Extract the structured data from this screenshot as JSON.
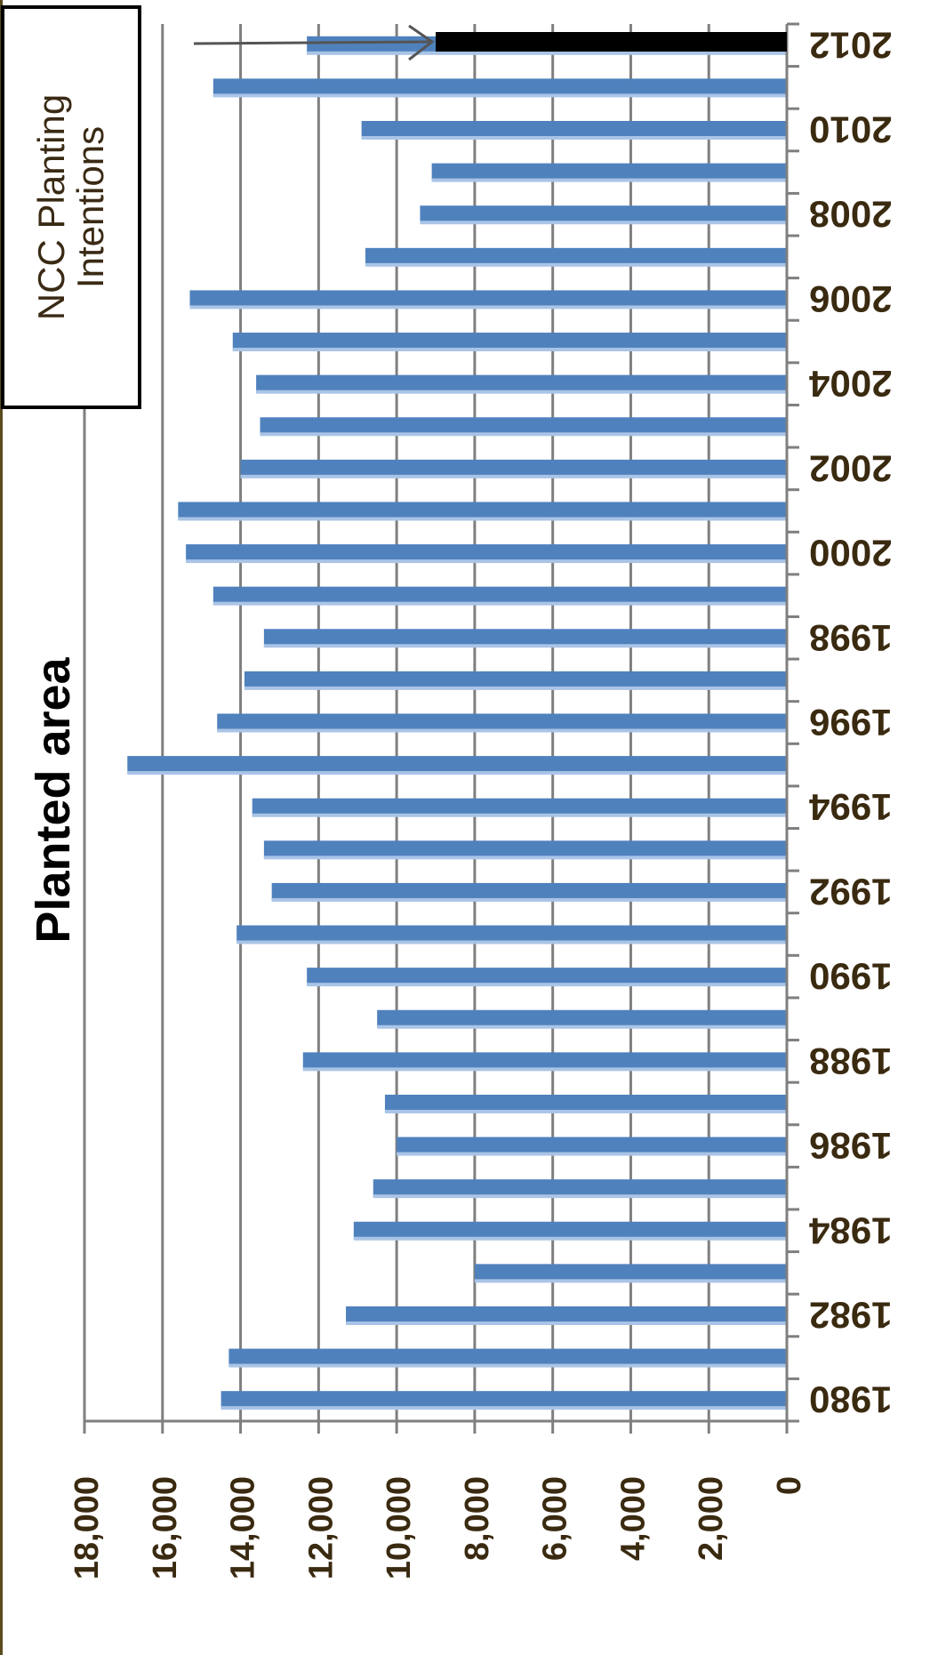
{
  "chart_data": {
    "type": "bar",
    "orientation": "horizontal-bars, figure rotated 90 degrees clockwise",
    "title": "Planted area",
    "categories": [
      "1980",
      "1981",
      "1982",
      "1983",
      "1984",
      "1985",
      "1986",
      "1987",
      "1988",
      "1989",
      "1990",
      "1991",
      "1992",
      "1993",
      "1994",
      "1995",
      "1996",
      "1997",
      "1998",
      "1999",
      "2000",
      "2001",
      "2002",
      "2003",
      "2004",
      "2005",
      "2006",
      "2007",
      "2008",
      "2009",
      "2010",
      "2011",
      "2012"
    ],
    "category_tick_labels": [
      "1980",
      "1982",
      "1984",
      "1986",
      "1988",
      "1990",
      "1992",
      "1994",
      "1996",
      "1998",
      "2000",
      "2002",
      "2004",
      "2006",
      "2008",
      "2010",
      "2012"
    ],
    "series": [
      {
        "values": [
          14500,
          14300,
          11300,
          8000,
          11100,
          10600,
          10000,
          10300,
          12400,
          10500,
          12300,
          14100,
          13200,
          13400,
          13700,
          16900,
          14600,
          13900,
          13400,
          14700,
          15400,
          15600,
          14000,
          13500,
          13600,
          14200,
          15300,
          10800,
          9400,
          9100,
          10900,
          14700,
          12300
        ]
      }
    ],
    "y_tick_labels": [
      "0",
      "2,000",
      "4,000",
      "6,000",
      "8,000",
      "10,000",
      "12,000",
      "14,000",
      "16,000",
      "18,000"
    ],
    "ylim": [
      0,
      18000
    ],
    "grid": true,
    "annotation": {
      "label": "NCC Planting Intentions",
      "value": 9000,
      "arrow": true
    },
    "colors": {
      "bar": "#4f81bd",
      "bar_highlight": "#a9c4e6",
      "annotation_bar": "#000000",
      "grid": "#7f7f7f",
      "axis": "#7f7f7f",
      "tick_text": "#3a2a10"
    }
  }
}
